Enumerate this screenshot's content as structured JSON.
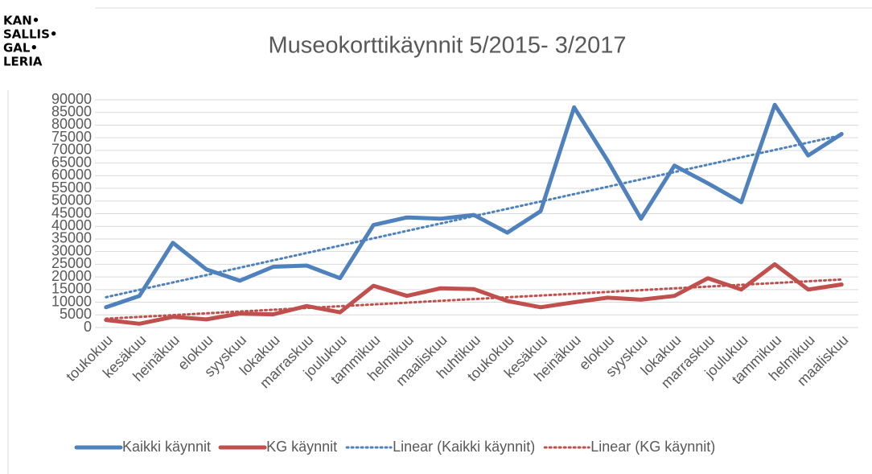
{
  "logo": [
    "KAN•",
    "SALLIS•",
    "GAL•",
    "LERIA"
  ],
  "chart_data": {
    "type": "line",
    "title": "Museokorttikäynnit 5/2015- 3/2017",
    "categories": [
      "toukokuu",
      "kesäkuu",
      "heinäkuu",
      "elokuu",
      "syyskuu",
      "lokakuu",
      "marraskuu",
      "joulukuu",
      "tammikuu",
      "helmikuu",
      "maaliskuu",
      "huhtikuu",
      "toukokuu",
      "kesäkuu",
      "heinäkuu",
      "elokuu",
      "syyskuu",
      "lokakuu",
      "marraskuu",
      "joulukuu",
      "tammikuu",
      "helmikuu",
      "maaliskuu"
    ],
    "series": [
      {
        "name": "Kaikki käynnit",
        "color": "#4f81bd",
        "style": "solid",
        "values": [
          8000,
          12500,
          33500,
          23000,
          18500,
          24000,
          24500,
          19500,
          40500,
          43500,
          43000,
          44500,
          37500,
          46000,
          87000,
          66000,
          43000,
          64000,
          57000,
          49500,
          88000,
          68000,
          76500
        ]
      },
      {
        "name": "KG käynnit",
        "color": "#c0504d",
        "style": "solid",
        "values": [
          3000,
          1500,
          4200,
          3200,
          5500,
          5200,
          8500,
          6000,
          16500,
          12500,
          15500,
          15200,
          10500,
          8000,
          10000,
          11800,
          11000,
          12500,
          19500,
          15000,
          25000,
          15000,
          17000
        ]
      },
      {
        "name": "Linear (Kaikki käynnit)",
        "color": "#4f81bd",
        "style": "dotted",
        "values": [
          12000,
          14909,
          17818,
          20727,
          23636,
          26545,
          29455,
          32364,
          35273,
          38182,
          41091,
          44000,
          46909,
          49818,
          52727,
          55636,
          58545,
          61455,
          64364,
          67273,
          70182,
          73091,
          76000
        ]
      },
      {
        "name": "Linear (KG käynnit)",
        "color": "#c0504d",
        "style": "dotted",
        "values": [
          3500,
          4205,
          4909,
          5614,
          6318,
          7023,
          7727,
          8432,
          9136,
          9841,
          10545,
          11250,
          11955,
          12659,
          13364,
          14068,
          14773,
          15477,
          16182,
          16886,
          17591,
          18295,
          19000
        ]
      }
    ],
    "ylim": [
      0,
      90000
    ],
    "yticks": [
      0,
      5000,
      10000,
      15000,
      20000,
      25000,
      30000,
      35000,
      40000,
      45000,
      50000,
      55000,
      60000,
      65000,
      70000,
      75000,
      80000,
      85000,
      90000
    ],
    "grid": true,
    "legend": "bottom"
  }
}
